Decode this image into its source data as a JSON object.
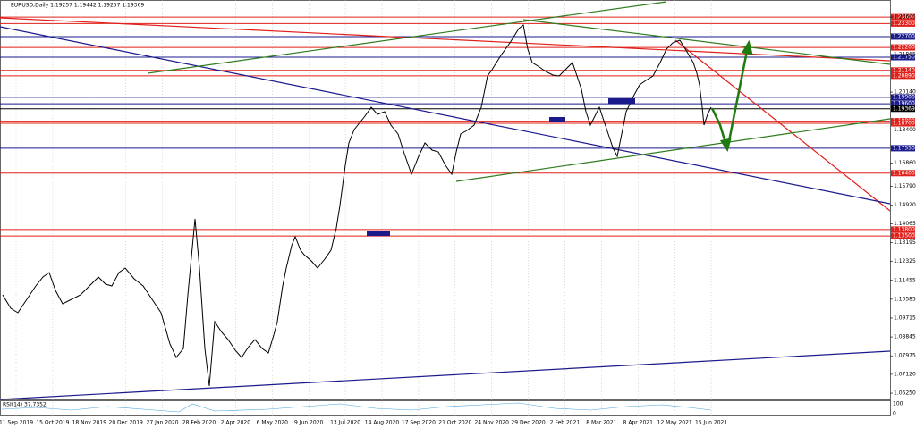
{
  "header": {
    "symbol_info": "EURUSD,Daily  1.19257 1.19442 1.19257 1.19369"
  },
  "price_axis": {
    "labels": [
      "1.23605",
      "1.21865",
      "1.20140",
      "1.18400",
      "1.16860",
      "1.15790",
      "1.14920",
      "1.14065",
      "1.13195",
      "1.12325",
      "1.11455",
      "1.10585",
      "1.09715",
      "1.08845",
      "1.07975",
      "1.07120",
      "1.06250"
    ]
  },
  "levels": [
    {
      "label": "1.23600",
      "color": "#e0201a"
    },
    {
      "label": "1.23300",
      "color": "#e0201a"
    },
    {
      "label": "1.22700",
      "color": "#1a1a8c"
    },
    {
      "label": "1.22200",
      "color": "#e0201a"
    },
    {
      "label": "1.21750",
      "color": "#1a1a8c"
    },
    {
      "label": "1.21140",
      "color": "#e0201a"
    },
    {
      "label": "1.20890",
      "color": "#e0201a"
    },
    {
      "label": "1.19900",
      "color": "#1a1a8c"
    },
    {
      "label": "1.19600",
      "color": "#1a1a8c"
    },
    {
      "label": "1.19369",
      "color": "#000000"
    },
    {
      "label": "1.18800",
      "color": "#e0201a"
    },
    {
      "label": "1.18700",
      "color": "#e0201a"
    },
    {
      "label": "1.17550",
      "color": "#1a1a8c"
    },
    {
      "label": "1.16400",
      "color": "#e0201a"
    },
    {
      "label": "1.13800",
      "color": "#e0201a"
    },
    {
      "label": "1.13500",
      "color": "#e0201a"
    }
  ],
  "time_axis": {
    "labels": [
      "11 Sep 2019",
      "15 Oct 2019",
      "18 Nov 2019",
      "20 Dec 2019",
      "27 Jan 2020",
      "28 Feb 2020",
      "2 Apr 2020",
      "6 May 2020",
      "9 Jun 2020",
      "13 Jul 2020",
      "14 Aug 2020",
      "17 Sep 2020",
      "21 Oct 2020",
      "24 Nov 2020",
      "29 Dec 2020",
      "2 Feb 2021",
      "8 Mar 2021",
      "8 Apr 2021",
      "12 May 2021",
      "15 Jun 2021"
    ]
  },
  "indicator": {
    "label": "RSI(14) 37.7352",
    "top": "100",
    "bottom": "0"
  }
}
